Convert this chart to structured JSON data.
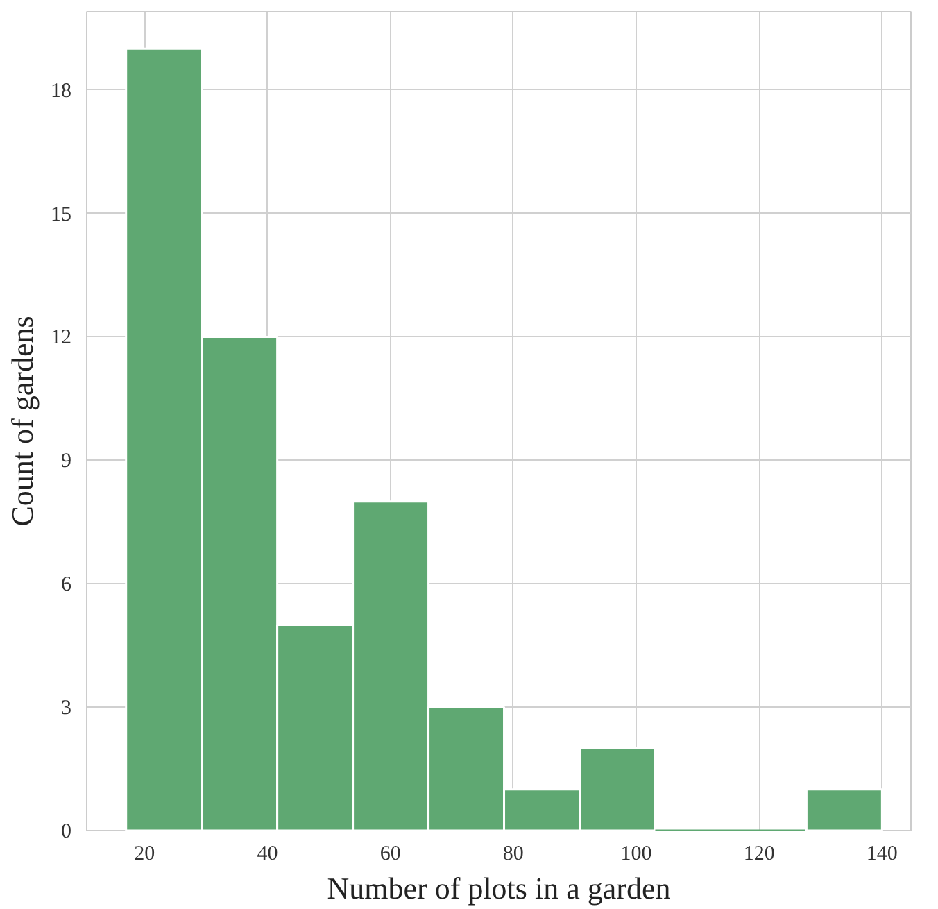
{
  "chart_data": {
    "type": "histogram",
    "xlabel": "Number of plots in a garden",
    "ylabel": "Count of gardens",
    "bins": [
      17,
      29.3,
      41.6,
      53.9,
      66.2,
      78.5,
      90.8,
      103.1,
      115.4,
      127.7,
      140
    ],
    "values": [
      19,
      12,
      5,
      8,
      3,
      1,
      2,
      0,
      0,
      1
    ],
    "color": "#5fa872",
    "xlim": [
      10.6,
      144.7
    ],
    "ylim": [
      0,
      19.9
    ],
    "xticks": [
      20,
      40,
      60,
      80,
      100,
      120,
      140
    ],
    "yticks": [
      0,
      3,
      6,
      9,
      12,
      15,
      18
    ],
    "grid": true
  }
}
